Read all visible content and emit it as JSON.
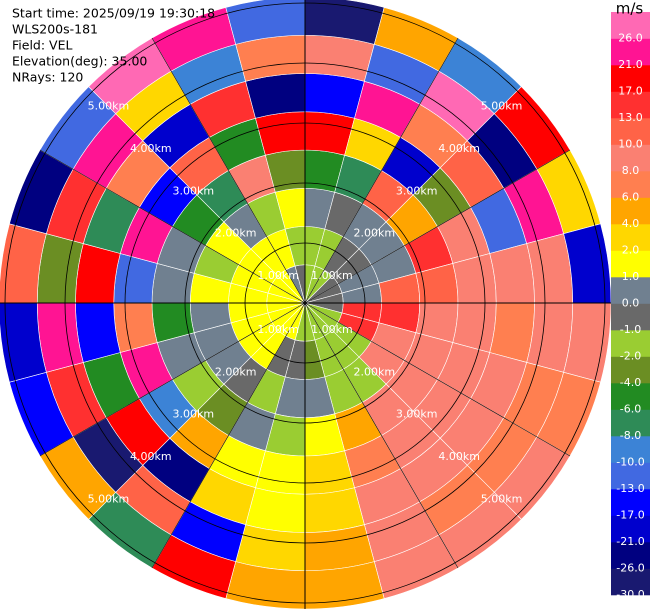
{
  "chart_data": {
    "type": "ppi",
    "info": [
      "Start time: 2025/09/19 19:30:18",
      "WLS200s-181",
      "Field: VEL",
      "Elevation(deg): 35.00",
      "NRays: 120"
    ],
    "rlim": [
      0,
      5.1
    ],
    "rticks": [
      {
        "value": 1,
        "label": "1.00km"
      },
      {
        "value": 2,
        "label": "2.00km"
      },
      {
        "value": 3,
        "label": "3.00km"
      },
      {
        "value": 4,
        "label": "4.00km"
      },
      {
        "value": 5,
        "label": "5.00km"
      }
    ],
    "values": [
      [
        -1.5,
        -1.5,
        0.5,
        -5,
        20,
        -15,
        8,
        -28
      ],
      [
        -1.5,
        -1.5,
        -0.5,
        -7,
        3,
        22,
        -12,
        5
      ],
      [
        -1.5,
        -0.5,
        0.5,
        12,
        -19,
        7,
        27,
        -9
      ],
      [
        -0.5,
        -0.5,
        0.5,
        5,
        -3,
        11,
        -23,
        18
      ],
      [
        -0.5,
        0.5,
        0.5,
        15,
        9,
        -11,
        24,
        3
      ],
      [
        -0.5,
        0.5,
        12,
        12,
        9,
        9,
        9,
        -18
      ],
      [
        -0.5,
        15,
        15,
        9,
        9,
        7,
        9,
        9
      ],
      [
        -1.5,
        15,
        9,
        9,
        9,
        9,
        7,
        7
      ],
      [
        -1.5,
        -1.5,
        9,
        9,
        9,
        9,
        7,
        9
      ],
      [
        -1.5,
        -1.5,
        -1.5,
        9,
        9,
        9,
        7,
        9
      ],
      [
        -1.5,
        -1.5,
        -1.5,
        5,
        7,
        9,
        9,
        9
      ],
      [
        -1.5,
        -3,
        0.5,
        1.5,
        3,
        3,
        5,
        5
      ],
      [
        -1.5,
        -0.5,
        0.5,
        -1.5,
        1.5,
        1.5,
        3,
        5
      ],
      [
        1.5,
        -0.5,
        -1.5,
        0.5,
        1.5,
        3,
        -15,
        20
      ],
      [
        1.5,
        1.5,
        -0.5,
        -3,
        5,
        -22,
        11,
        -7
      ],
      [
        1.5,
        1.5,
        0.5,
        -1.5,
        -9,
        18,
        -27,
        4
      ],
      [
        1.5,
        1.5,
        0.5,
        0.5,
        22,
        -5,
        13,
        -16
      ],
      [
        1.5,
        1.5,
        0.5,
        -5,
        7,
        -14,
        25,
        -20
      ],
      [
        1.5,
        1.5,
        1.5,
        0.5,
        -11,
        19,
        -3,
        10
      ],
      [
        1.5,
        1.5,
        -1.5,
        0.5,
        23,
        -8,
        14,
        -25
      ],
      [
        1.5,
        1.5,
        1.5,
        -5,
        -16,
        6,
        21,
        -12
      ],
      [
        1.5,
        1.5,
        0.5,
        -7,
        11,
        -20,
        3,
        27
      ],
      [
        0.5,
        1.5,
        -1.5,
        9,
        -5,
        15,
        -9,
        22
      ],
      [
        -0.5,
        -1.5,
        1.5,
        -3,
        18,
        -24,
        7,
        -13
      ]
    ],
    "colorbar": {
      "label": "m/s",
      "bounds": [
        -30,
        -26,
        -21,
        -17,
        -13,
        -10,
        -8,
        -6,
        -4,
        -2,
        -1,
        0,
        1,
        2,
        4,
        6,
        8,
        10,
        13,
        17,
        21,
        26,
        30
      ],
      "colors": [
        "#191970",
        "#000080",
        "#0000cd",
        "#0000ff",
        "#4169e1",
        "#3c83d6",
        "#2e8b57",
        "#228b22",
        "#6b8e23",
        "#9acd32",
        "#696969",
        "#708090",
        "#ffff00",
        "#ffd700",
        "#ffa500",
        "#ff7f50",
        "#fa8072",
        "#ff6347",
        "#ff3030",
        "#ff0000",
        "#ff1493",
        "#ff69b4"
      ],
      "ticks": [
        {
          "value": -30,
          "label": "-30.0"
        },
        {
          "value": -26,
          "label": "-26.0"
        },
        {
          "value": -21,
          "label": "-21.0"
        },
        {
          "value": -17,
          "label": "-17.0"
        },
        {
          "value": -13,
          "label": "-13.0"
        },
        {
          "value": -10,
          "label": "-10.0"
        },
        {
          "value": -8,
          "label": "-8.0"
        },
        {
          "value": -6,
          "label": "-6.0"
        },
        {
          "value": -4,
          "label": "-4.0"
        },
        {
          "value": -2,
          "label": "-2.0"
        },
        {
          "value": -1,
          "label": "-1.0"
        },
        {
          "value": 0,
          "label": "0.0"
        },
        {
          "value": 1,
          "label": "1.0"
        },
        {
          "value": 2,
          "label": "2.0"
        },
        {
          "value": 4,
          "label": "4.0"
        },
        {
          "value": 6,
          "label": "6.0"
        },
        {
          "value": 8,
          "label": "8.0"
        },
        {
          "value": 10,
          "label": "10.0"
        },
        {
          "value": 13,
          "label": "13.0"
        },
        {
          "value": 17,
          "label": "17.0"
        },
        {
          "value": 21,
          "label": "21.0"
        },
        {
          "value": 26,
          "label": "26.0"
        }
      ]
    }
  }
}
